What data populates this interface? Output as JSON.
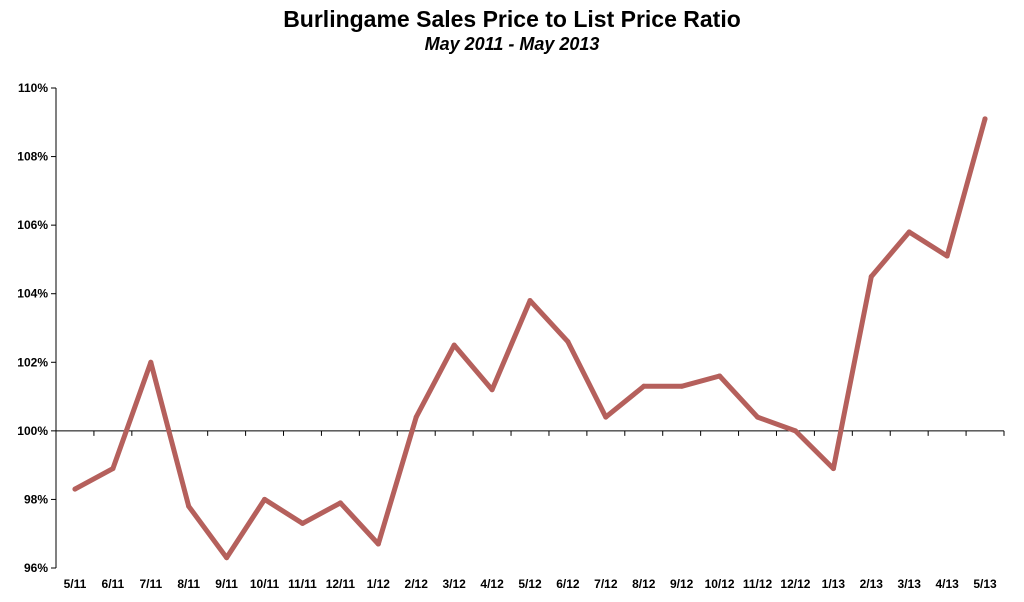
{
  "chart_data": {
    "type": "line",
    "title": "Burlingame Sales Price to List Price Ratio",
    "subtitle": "May 2011 - May 2013",
    "xlabel": "",
    "ylabel": "",
    "categories": [
      "5/11",
      "6/11",
      "7/11",
      "8/11",
      "9/11",
      "10/11",
      "11/11",
      "12/11",
      "1/12",
      "2/12",
      "3/12",
      "4/12",
      "5/12",
      "6/12",
      "7/12",
      "8/12",
      "9/12",
      "10/12",
      "11/12",
      "12/12",
      "1/13",
      "2/13",
      "3/13",
      "4/13",
      "5/13"
    ],
    "series": [
      {
        "values": [
          98.3,
          98.9,
          102.0,
          97.8,
          96.3,
          98.0,
          97.3,
          97.9,
          96.7,
          100.4,
          102.5,
          101.2,
          103.8,
          102.6,
          100.4,
          101.3,
          101.3,
          101.6,
          100.4,
          100.0,
          98.9,
          104.5,
          105.8,
          105.1,
          109.1
        ],
        "color": "#b5605c"
      }
    ],
    "ylim": [
      96,
      110
    ],
    "yticks": [
      96,
      98,
      100,
      102,
      104,
      106,
      108,
      110
    ],
    "ytick_labels": [
      "96%",
      "98%",
      "100%",
      "102%",
      "104%",
      "106%",
      "108%",
      "110%"
    ],
    "x_axis_crosses_at": 100,
    "grid": false,
    "legend": "none"
  }
}
